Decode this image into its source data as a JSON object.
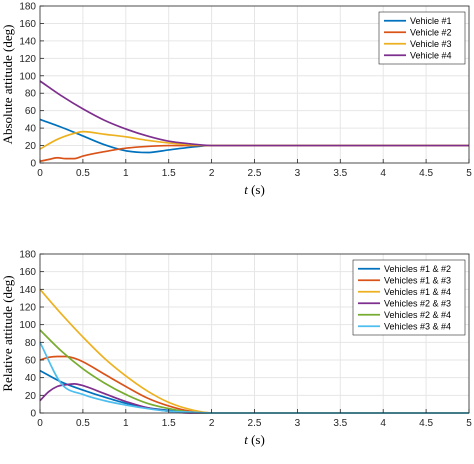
{
  "chart_data": [
    {
      "type": "line",
      "xlabel": "t (s)",
      "ylabel": "Absolute attitude (deg)",
      "xlim": [
        0,
        5
      ],
      "ylim": [
        0,
        180
      ],
      "xticks": [
        0,
        0.5,
        1,
        1.5,
        2,
        2.5,
        3,
        3.5,
        4,
        4.5,
        5
      ],
      "xtick_labels": [
        "0",
        "0.5",
        "1",
        "1.5",
        "2",
        "2.5",
        "3",
        "3.5",
        "4",
        "4.5",
        "5"
      ],
      "yticks": [
        0,
        20,
        40,
        60,
        80,
        100,
        120,
        140,
        160,
        180
      ],
      "grid": true,
      "legend_position": "top-right",
      "series": [
        {
          "name": "Vehicle #1",
          "color": "#0072BD",
          "x": [
            0,
            0.25,
            0.5,
            0.75,
            1.0,
            1.25,
            1.5,
            1.75,
            2.0,
            5.0
          ],
          "y": [
            50,
            41,
            31,
            21,
            14,
            12,
            15,
            18,
            20,
            20
          ]
        },
        {
          "name": "Vehicle #2",
          "color": "#D95319",
          "x": [
            0,
            0.1,
            0.2,
            0.3,
            0.4,
            0.5,
            0.75,
            1.0,
            1.25,
            1.5,
            1.75,
            2.0,
            5.0
          ],
          "y": [
            2,
            4,
            6,
            5,
            5,
            8,
            13,
            17,
            19,
            20,
            20,
            20,
            20
          ]
        },
        {
          "name": "Vehicle #3",
          "color": "#EDB120",
          "x": [
            0,
            0.2,
            0.4,
            0.5,
            0.75,
            1.0,
            1.25,
            1.5,
            1.75,
            2.0,
            5.0
          ],
          "y": [
            16,
            27,
            34,
            36,
            33,
            30,
            26,
            23,
            21,
            20,
            20
          ]
        },
        {
          "name": "Vehicle #4",
          "color": "#7E2F8E",
          "x": [
            0,
            0.25,
            0.5,
            0.75,
            1.0,
            1.25,
            1.5,
            1.75,
            2.0,
            5.0
          ],
          "y": [
            94,
            77,
            62,
            49,
            39,
            31,
            25,
            22,
            20,
            20
          ]
        }
      ]
    },
    {
      "type": "line",
      "xlabel": "t (s)",
      "ylabel": "Relative attitude (deg)",
      "xlim": [
        0,
        5
      ],
      "ylim": [
        0,
        180
      ],
      "xticks": [
        0,
        0.5,
        1,
        1.5,
        2,
        2.5,
        3,
        3.5,
        4,
        4.5,
        5
      ],
      "xtick_labels": [
        "0",
        "0.5",
        "1",
        "1.5",
        "2",
        "2.5",
        "3",
        "3.5",
        "4",
        "4.5",
        "5"
      ],
      "yticks": [
        0,
        20,
        40,
        60,
        80,
        100,
        120,
        140,
        160,
        180
      ],
      "grid": true,
      "legend_position": "top-right",
      "series": [
        {
          "name": "Vehicles #1 & #2",
          "color": "#0072BD",
          "x": [
            0,
            0.25,
            0.5,
            0.75,
            1.0,
            1.25,
            1.5,
            1.75,
            2.0,
            5.0
          ],
          "y": [
            48,
            35,
            26,
            18,
            11,
            6,
            3,
            1,
            0,
            0
          ]
        },
        {
          "name": "Vehicles #1 & #3",
          "color": "#D95319",
          "x": [
            0,
            0.1,
            0.2,
            0.3,
            0.4,
            0.5,
            0.75,
            1.0,
            1.25,
            1.5,
            1.75,
            2.0,
            5.0
          ],
          "y": [
            60,
            63,
            64,
            64,
            62,
            58,
            44,
            30,
            17,
            8,
            2,
            0,
            0
          ]
        },
        {
          "name": "Vehicles #1 & #4",
          "color": "#EDB120",
          "x": [
            0,
            0.25,
            0.5,
            0.75,
            1.0,
            1.25,
            1.5,
            1.75,
            2.0,
            5.0
          ],
          "y": [
            140,
            112,
            86,
            62,
            42,
            25,
            12,
            4,
            0,
            0
          ]
        },
        {
          "name": "Vehicles #2 & #3",
          "color": "#7E2F8E",
          "x": [
            0,
            0.1,
            0.2,
            0.3,
            0.4,
            0.5,
            0.75,
            1.0,
            1.25,
            1.5,
            1.75,
            2.0,
            5.0
          ],
          "y": [
            14,
            24,
            30,
            32,
            33,
            31,
            22,
            13,
            6,
            2,
            0,
            0,
            0
          ]
        },
        {
          "name": "Vehicles #2 & #4",
          "color": "#77AC30",
          "x": [
            0,
            0.25,
            0.5,
            0.75,
            1.0,
            1.25,
            1.5,
            1.75,
            2.0,
            5.0
          ],
          "y": [
            94,
            70,
            50,
            34,
            21,
            11,
            5,
            1,
            0,
            0
          ]
        },
        {
          "name": "Vehicles #3 & #4",
          "color": "#4DBEEE",
          "x": [
            0,
            0.25,
            0.5,
            0.75,
            1.0,
            1.25,
            1.5,
            1.75,
            2.0,
            5.0
          ],
          "y": [
            80,
            33,
            21,
            14,
            9,
            5,
            2,
            1,
            0,
            0
          ]
        }
      ]
    }
  ]
}
